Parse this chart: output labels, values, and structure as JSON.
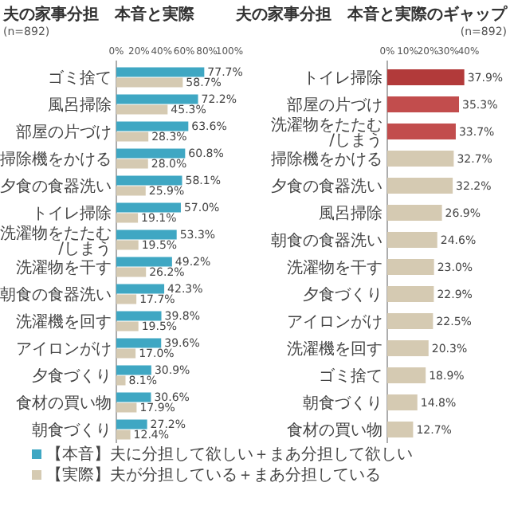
{
  "chart_data": [
    {
      "type": "bar",
      "orientation": "horizontal",
      "title": "夫の家事分担　本音と実際",
      "subtitle": "(n=892)",
      "categories": [
        "ゴミ捨て",
        "風呂掃除",
        "部屋の片づけ",
        "掃除機をかける",
        "夕食の食器洗い",
        "トイレ掃除",
        "洗濯物をたたむ/しまう",
        "洗濯物を干す",
        "朝食の食器洗い",
        "洗濯機を回す",
        "アイロンがけ",
        "夕食づくり",
        "食材の買い物",
        "朝食づくり"
      ],
      "series": [
        {
          "name": "【本音】夫に分担して欲しい＋まあ分担して欲しい",
          "color": "#3fa7c3",
          "values": [
            77.7,
            72.2,
            63.6,
            60.8,
            58.1,
            57.0,
            53.3,
            49.2,
            42.3,
            39.8,
            39.6,
            30.9,
            30.6,
            27.2
          ],
          "value_labels": [
            "77.7%",
            "72.2%",
            "63.6%",
            "60.8%",
            "58.1%",
            "57.0%",
            "53.3%",
            "49.2%",
            "42.3%",
            "39.8%",
            "39.6%",
            "30.9%",
            "30.6%",
            "27.2%"
          ]
        },
        {
          "name": "【実際】夫が分担している＋まあ分担している",
          "color": "#d5cab2",
          "values": [
            58.7,
            45.3,
            28.3,
            28.0,
            25.9,
            19.1,
            19.5,
            26.2,
            17.7,
            19.5,
            17.0,
            8.1,
            17.9,
            12.4
          ],
          "value_labels": [
            "58.7%",
            "45.3%",
            "28.3%",
            "28.0%",
            "25.9%",
            "19.1%",
            "19.5%",
            "26.2%",
            "17.7%",
            "19.5%",
            "17.0%",
            "8.1%",
            "17.9%",
            "12.4%"
          ]
        }
      ],
      "xlim": [
        0,
        100
      ],
      "xticks": [
        {
          "value": 0,
          "label": "0%"
        },
        {
          "value": 20,
          "label": "20%"
        },
        {
          "value": 40,
          "label": "40%"
        },
        {
          "value": 60,
          "label": "60%"
        },
        {
          "value": 80,
          "label": "80%"
        },
        {
          "value": 100,
          "label": "100%"
        }
      ],
      "legend": "bottom"
    },
    {
      "type": "bar",
      "orientation": "horizontal",
      "title": "夫の家事分担　本音と実際のギャップ",
      "subtitle": "(n=892)",
      "categories": [
        "トイレ掃除",
        "部屋の片づけ",
        "洗濯物をたたむ/しまう",
        "掃除機をかける",
        "夕食の食器洗い",
        "風呂掃除",
        "朝食の食器洗い",
        "洗濯物を干す",
        "夕食づくり",
        "アイロンがけ",
        "洗濯機を回す",
        "ゴミ捨て",
        "朝食づくり",
        "食材の買い物"
      ],
      "values": [
        37.9,
        35.3,
        33.7,
        32.7,
        32.2,
        26.9,
        24.6,
        23.0,
        22.9,
        22.5,
        20.3,
        18.9,
        14.8,
        12.7
      ],
      "value_labels": [
        "37.9%",
        "35.3%",
        "33.7%",
        "32.7%",
        "32.2%",
        "26.9%",
        "24.6%",
        "23.0%",
        "22.9%",
        "22.5%",
        "20.3%",
        "18.9%",
        "14.8%",
        "12.7%"
      ],
      "colors": [
        "#b23a3a",
        "#c24d4d",
        "#c24d4d",
        "#d5cab2",
        "#d5cab2",
        "#d5cab2",
        "#d5cab2",
        "#d5cab2",
        "#d5cab2",
        "#d5cab2",
        "#d5cab2",
        "#d5cab2",
        "#d5cab2",
        "#d5cab2"
      ],
      "xlim": [
        0,
        40
      ],
      "xticks": [
        {
          "value": 0,
          "label": "0%"
        },
        {
          "value": 10,
          "label": "10%"
        },
        {
          "value": 20,
          "label": "20%"
        },
        {
          "value": 30,
          "label": "30%"
        },
        {
          "value": 40,
          "label": "40%"
        }
      ]
    }
  ]
}
